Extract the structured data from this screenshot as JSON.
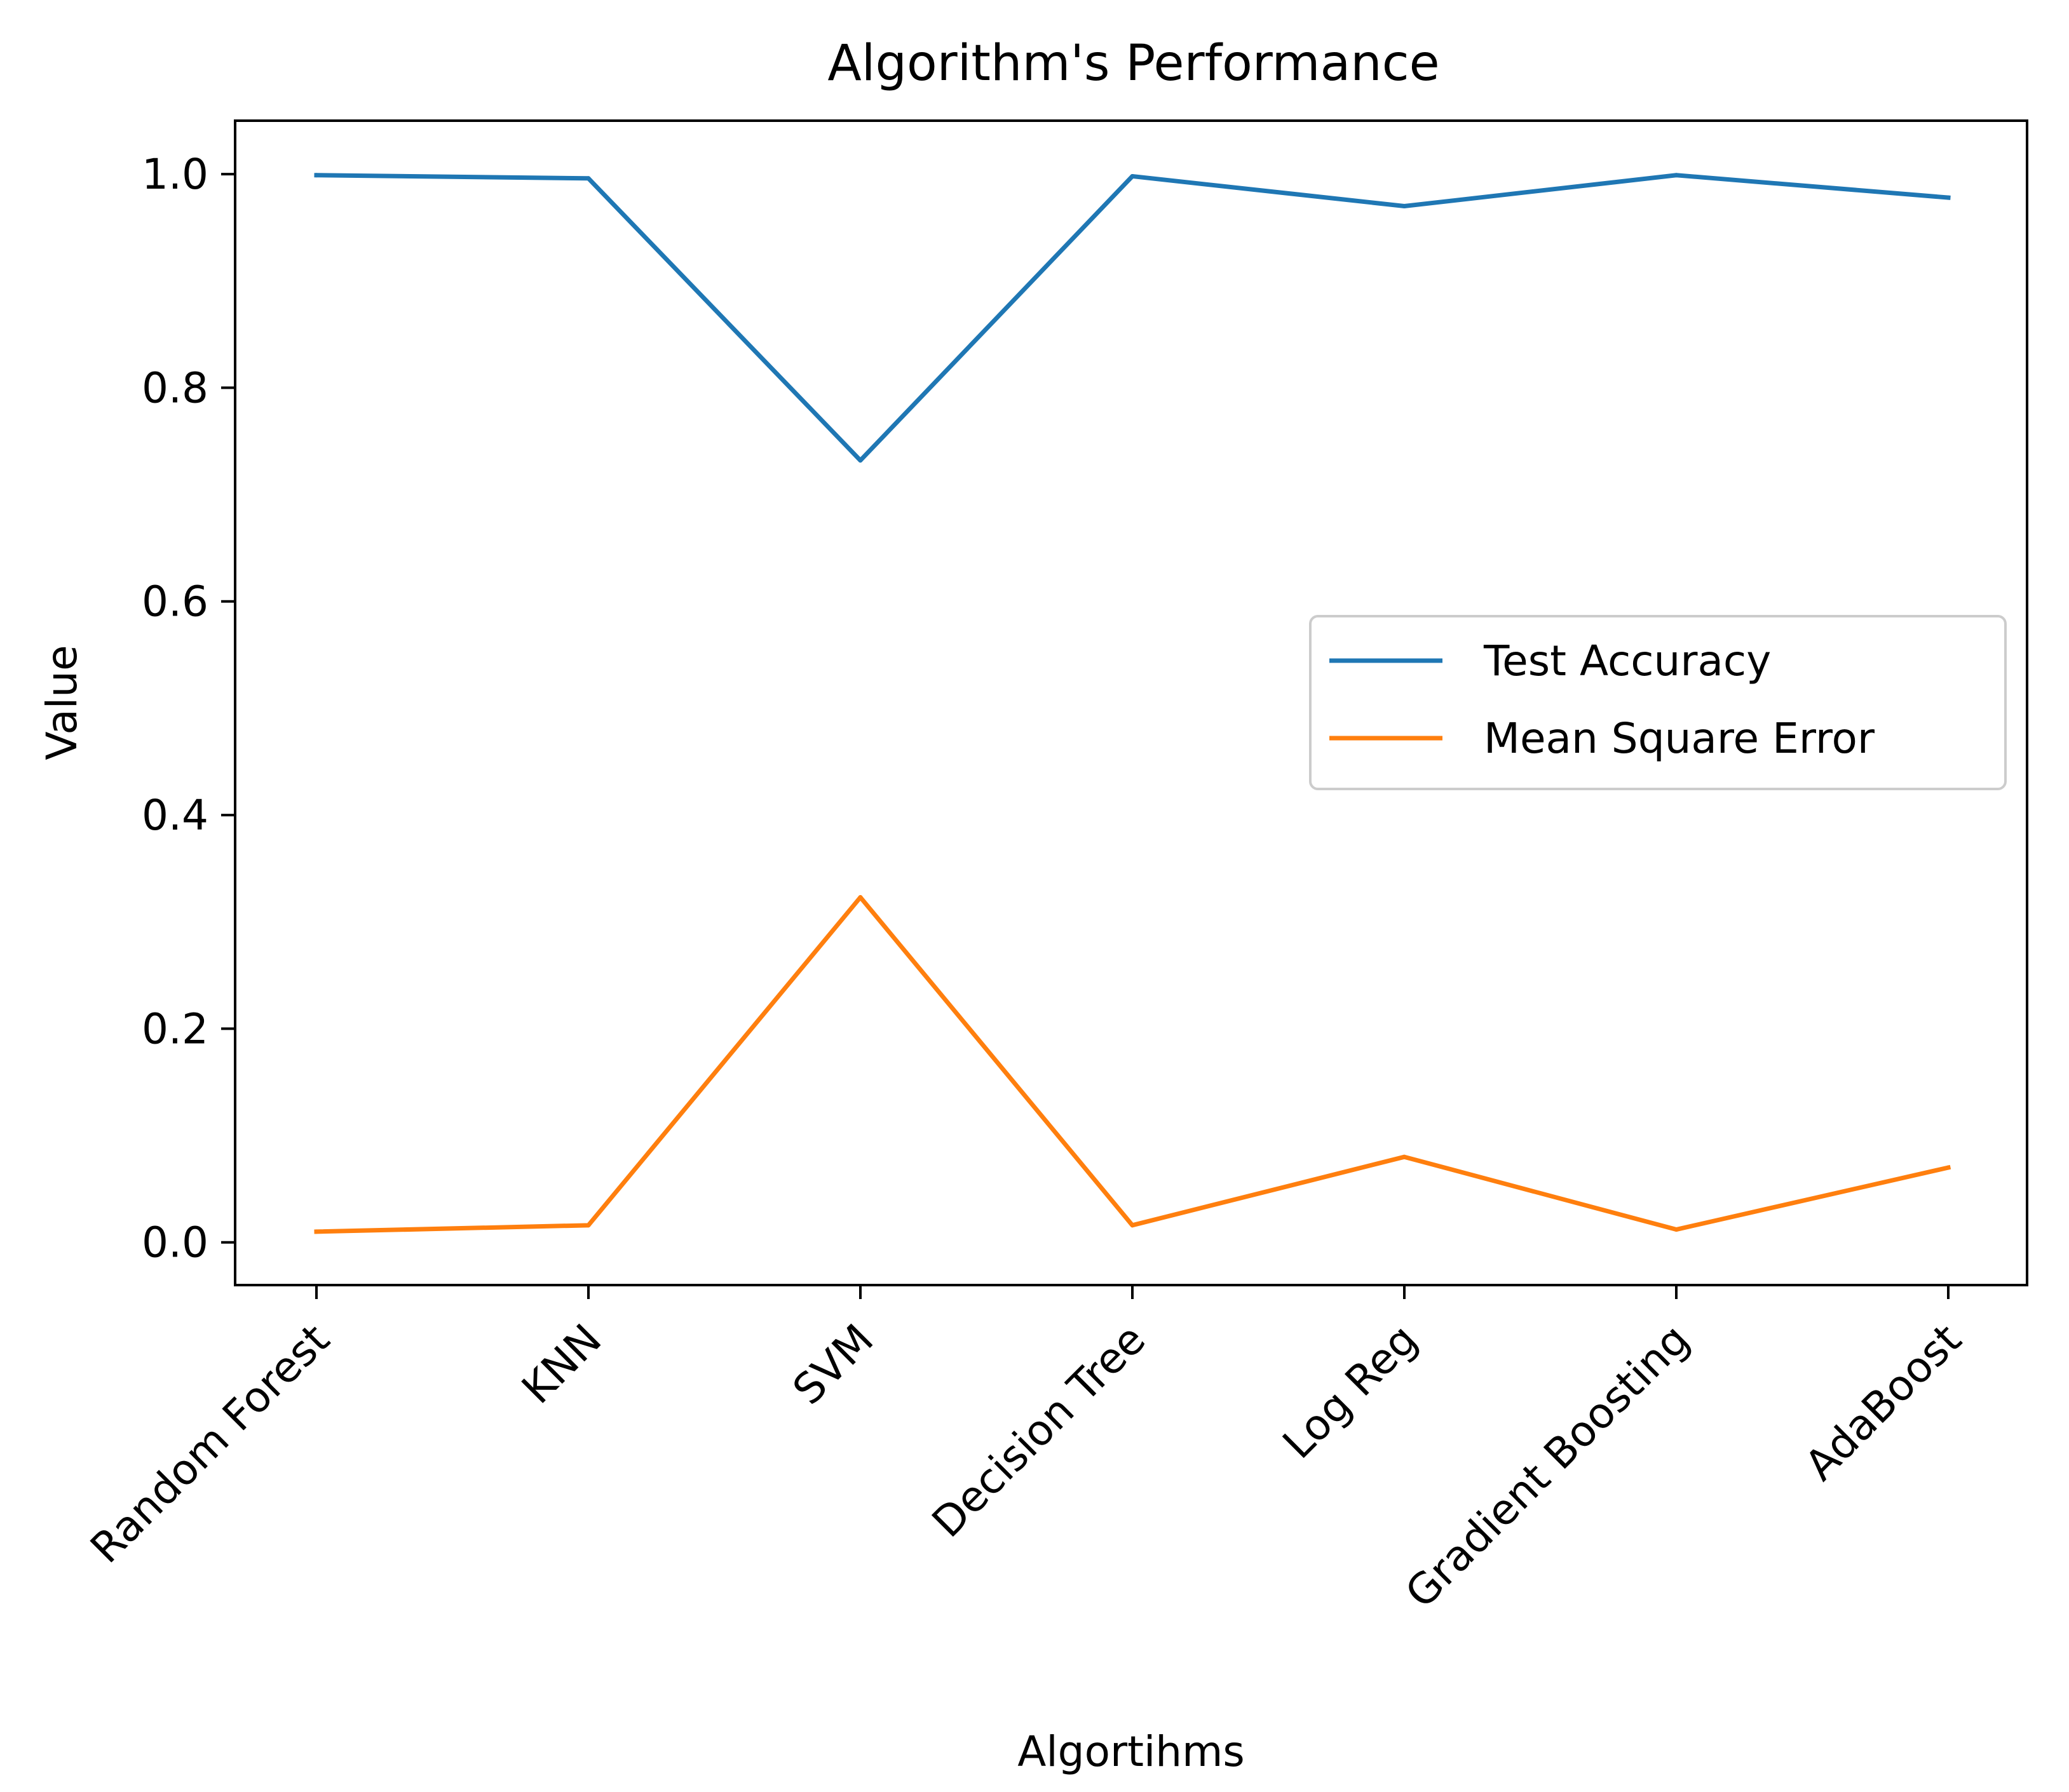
{
  "chart_data": {
    "type": "line",
    "title": "Algorithm's Performance",
    "xlabel": "Algortihms",
    "ylabel": "Value",
    "categories": [
      "Random Forest",
      "KNN",
      "SVM",
      "Decision Tree",
      "Log Reg",
      "Gradient Boosting",
      "AdaBoost"
    ],
    "series": [
      {
        "name": "Test Accuracy",
        "color": "#1f77b4",
        "values": [
          0.999,
          0.996,
          0.732,
          0.998,
          0.97,
          0.999,
          0.978
        ]
      },
      {
        "name": "Mean Square Error",
        "color": "#ff7f0e",
        "values": [
          0.01,
          0.016,
          0.323,
          0.016,
          0.08,
          0.012,
          0.07
        ]
      }
    ],
    "ylim": [
      -0.04,
      1.05
    ],
    "yticks": [
      "0.0",
      "0.2",
      "0.4",
      "0.6",
      "0.8",
      "1.0"
    ],
    "legend": "center-right",
    "grid": false
  }
}
